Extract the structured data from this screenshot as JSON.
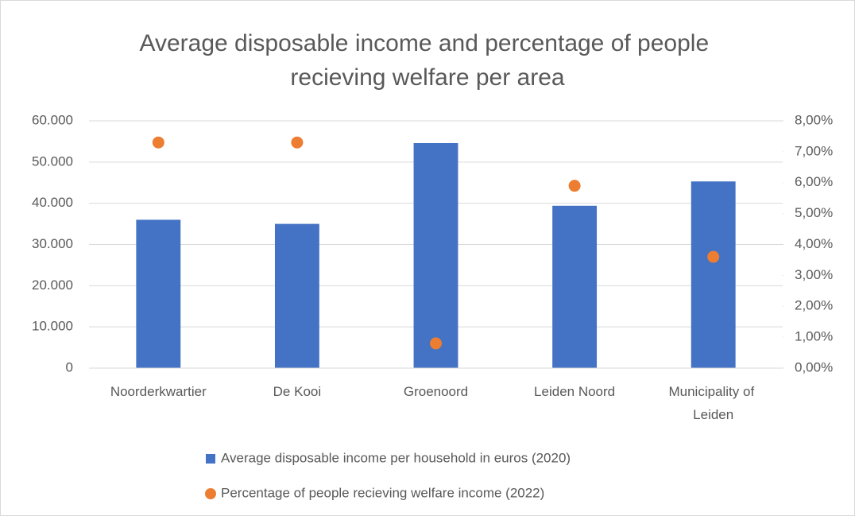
{
  "chart_data": {
    "type": "combo",
    "title": "Average disposable income and percentage of people recieving welfare per area",
    "categories": [
      "Noorderkwartier",
      "De Kooi",
      "Groenoord",
      "Leiden Noord",
      "Municipality of Leiden"
    ],
    "series": [
      {
        "name": "Average disposable income per household in euros (2020)",
        "type": "bar",
        "color": "#4472c4",
        "values": [
          36000,
          35000,
          54600,
          39400,
          45300
        ]
      },
      {
        "name": "Percentage of people recieving welfare income (2022)",
        "type": "scatter",
        "axis": "y2",
        "color": "#ed7d31",
        "values": [
          7.3,
          7.3,
          0.8,
          5.9,
          3.6
        ]
      }
    ],
    "ylim": [
      0,
      60000
    ],
    "yticks": [
      0,
      {
        "value": 10000,
        "label": "10.000"
      },
      {
        "value": 20000,
        "label": "20.000"
      },
      {
        "value": 30000,
        "label": "30.000"
      },
      {
        "value": 40000,
        "label": "40.000"
      },
      {
        "value": 50000,
        "label": "50.000"
      },
      {
        "value": 60000,
        "label": "60.000"
      }
    ],
    "y2lim": [
      0,
      8
    ],
    "y2ticks": [
      {
        "value": 0,
        "label": "0,00%"
      },
      {
        "value": 1,
        "label": "1,00%"
      },
      {
        "value": 2,
        "label": "2,00%"
      },
      {
        "value": 3,
        "label": "3,00%"
      },
      {
        "value": 4,
        "label": "4,00%"
      },
      {
        "value": 5,
        "label": "5,00%"
      },
      {
        "value": 6,
        "label": "6,00%"
      },
      {
        "value": 7,
        "label": "7,00%"
      },
      {
        "value": 8,
        "label": "8,00%"
      }
    ],
    "grid": true,
    "legend": "bottom"
  }
}
